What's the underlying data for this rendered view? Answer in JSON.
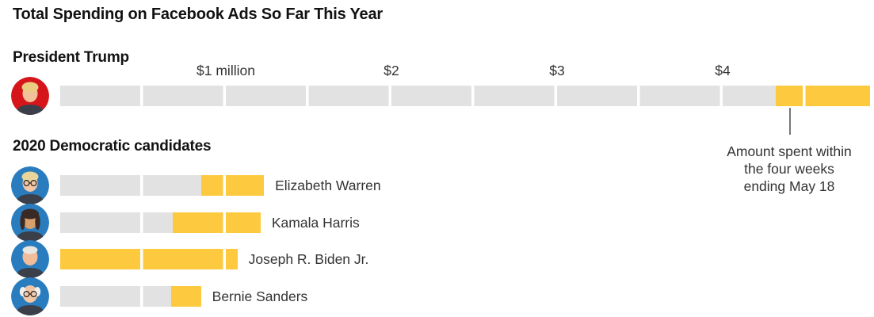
{
  "title": "Total Spending on Facebook Ads So Far This Year",
  "sections": {
    "trump_header": "President Trump",
    "dems_header": "2020 Democratic candidates"
  },
  "axis": {
    "ticks": [
      {
        "value": 1,
        "label": "$1 million"
      },
      {
        "value": 2,
        "label": "$2"
      },
      {
        "value": 3,
        "label": "$3"
      },
      {
        "value": 4,
        "label": "$4"
      }
    ]
  },
  "annotation": {
    "line1": "Amount spent within",
    "line2": "the four weeks",
    "line3": "ending May 18"
  },
  "colors": {
    "bar_base": "#e2e2e2",
    "bar_highlight": "#fcc93f",
    "trump_avatar_bg": "#d6151b",
    "dem_avatar_bg": "#297dbe",
    "annotation_pointer": "#777777"
  },
  "chart_data": {
    "type": "bar",
    "orientation": "horizontal",
    "title": "Total Spending on Facebook Ads So Far This Year",
    "unit": "millions of USD",
    "x_ticks": [
      "$1 million",
      "$2",
      "$3",
      "$4"
    ],
    "x_range_millions": [
      0,
      4.95
    ],
    "segment_grid_millions": 0.5,
    "highlight_meaning": "Amount spent within the four weeks ending May 18",
    "series": [
      {
        "name": "President Trump",
        "group": "President Trump",
        "total_millions": 4.89,
        "recent_four_weeks_millions": 0.57,
        "label_beside_bar": false
      },
      {
        "name": "Elizabeth Warren",
        "group": "2020 Democratic candidates",
        "total_millions": 1.23,
        "recent_four_weeks_millions": 0.38,
        "label_beside_bar": true
      },
      {
        "name": "Kamala Harris",
        "group": "2020 Democratic candidates",
        "total_millions": 1.21,
        "recent_four_weeks_millions": 0.53,
        "label_beside_bar": true
      },
      {
        "name": "Joseph R. Biden Jr.",
        "group": "2020 Democratic candidates",
        "total_millions": 1.07,
        "recent_four_weeks_millions": 1.07,
        "label_beside_bar": true
      },
      {
        "name": "Bernie Sanders",
        "group": "2020 Democratic candidates",
        "total_millions": 0.85,
        "recent_four_weeks_millions": 0.18,
        "label_beside_bar": true
      }
    ],
    "avatars": [
      {
        "name": "President Trump",
        "bg": "#d6151b",
        "hair": "#eacd82",
        "skin": "#f3c09c",
        "glasses": false,
        "hair_style": "full"
      },
      {
        "name": "Elizabeth Warren",
        "bg": "#297dbe",
        "hair": "#e9d49a",
        "skin": "#f3c6a5",
        "glasses": true,
        "hair_style": "full"
      },
      {
        "name": "Kamala Harris",
        "bg": "#297dbe",
        "hair": "#3a2a25",
        "skin": "#d9a06e",
        "glasses": false,
        "hair_style": "long"
      },
      {
        "name": "Joseph R. Biden Jr.",
        "bg": "#297dbe",
        "hair": "#e8e6e1",
        "skin": "#f0bc9a",
        "glasses": false,
        "hair_style": "short"
      },
      {
        "name": "Bernie Sanders",
        "bg": "#297dbe",
        "hair": "#f0efec",
        "skin": "#f3c6a5",
        "glasses": true,
        "hair_style": "balding"
      }
    ]
  }
}
